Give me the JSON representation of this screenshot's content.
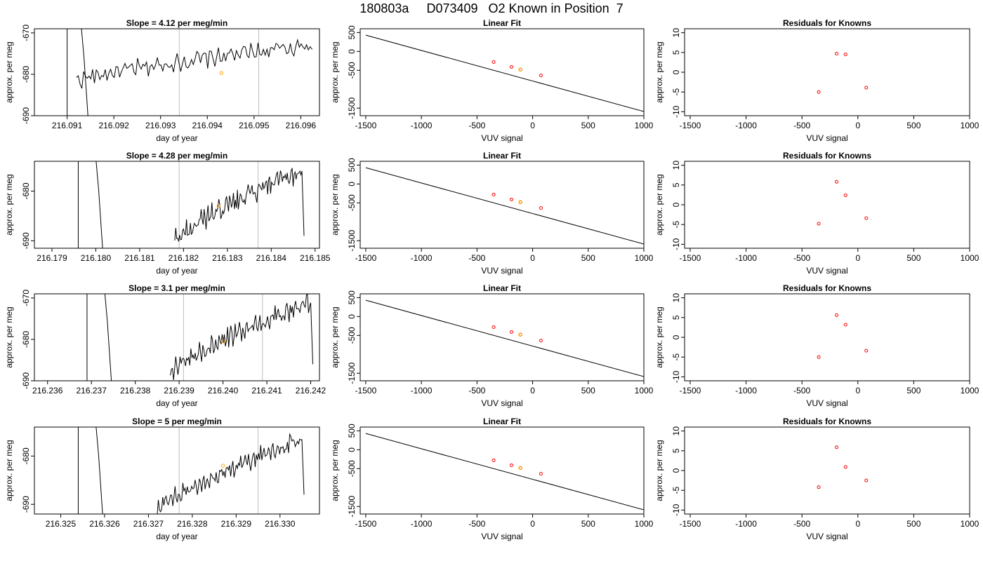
{
  "page_title": "180803a     D073409   O2 Known in Position  7",
  "colors": {
    "line": "#000000",
    "point": "#ff0000",
    "highlight": "#ffa500",
    "vline": "#bebebe"
  },
  "chart_data": [
    {
      "type": "line",
      "title": "Slope =  4.12  per meg/min",
      "xlabel": "day of year",
      "ylabel": "approx. per meg",
      "xlim": [
        216.0903,
        216.0964
      ],
      "ylim": [
        -690,
        -669
      ],
      "xticks": [
        "216.091",
        "216.092",
        "216.093",
        "216.094",
        "216.095",
        "216.096"
      ],
      "yticks": [
        "-690",
        "-680",
        "-670"
      ],
      "vlines": [
        216.0934,
        216.0951
      ],
      "marker": {
        "x": 216.0943,
        "y": -679.7
      },
      "trace": {
        "x_start": 216.0912,
        "x_end": 216.0962,
        "y_start": -681.5,
        "y_end": -673.0,
        "noise": 1.6
      },
      "spikes": [
        216.091,
        216.0913
      ],
      "y_drop_end": -674
    },
    {
      "type": "scatter",
      "title": "Linear Fit",
      "xlabel": "VUV signal",
      "ylabel": "approx. per meg",
      "xlim": [
        -1550,
        1000
      ],
      "ylim": [
        -1700,
        600
      ],
      "xticks": [
        "-1500",
        "-1000",
        "-500",
        "0",
        "500",
        "1000"
      ],
      "yticks": [
        "-1500",
        "-500",
        "0",
        "500"
      ],
      "fit_line": {
        "x": [
          -1500,
          1000
        ],
        "y": [
          430,
          -1590
        ]
      },
      "points": [
        {
          "x": -350,
          "y": -280
        },
        {
          "x": -190,
          "y": -410
        },
        {
          "x": -110,
          "y": -480
        },
        {
          "x": 75,
          "y": -635
        }
      ],
      "highlight": {
        "x": -110,
        "y": -480
      }
    },
    {
      "type": "scatter",
      "title": "Residuals for Knowns",
      "xlabel": "VUV signal",
      "ylabel": "approx. per meg",
      "xlim": [
        -1550,
        1000
      ],
      "ylim": [
        -11,
        11
      ],
      "xticks": [
        "-1500",
        "-1000",
        "-500",
        "0",
        "500",
        "1000"
      ],
      "yticks": [
        "-10",
        "-5",
        "0",
        "5",
        "10"
      ],
      "points": [
        {
          "x": -350,
          "y": -5.0
        },
        {
          "x": -190,
          "y": 4.7
        },
        {
          "x": -110,
          "y": 4.5
        },
        {
          "x": 75,
          "y": -3.9
        }
      ]
    },
    {
      "type": "line",
      "title": "Slope =  4.28  per meg/min",
      "xlabel": "day of year",
      "ylabel": "approx. per meg",
      "xlim": [
        216.1786,
        216.1851
      ],
      "ylim": [
        -691.5,
        -674
      ],
      "xticks": [
        "216.179",
        "216.180",
        "216.181",
        "216.182",
        "216.183",
        "216.184",
        "216.185"
      ],
      "yticks": [
        "-690",
        "-680"
      ],
      "vlines": [
        216.1819,
        216.1837
      ],
      "marker": {
        "x": 216.1828,
        "y": -683.0
      },
      "trace": {
        "x_start": 216.1818,
        "x_end": 216.1847,
        "y_start": -690.0,
        "y_end": -676.0,
        "noise": 1.6
      },
      "spikes": [
        216.1796,
        216.18
      ],
      "y_drop_end": -689
    },
    {
      "type": "scatter",
      "title": "Linear Fit",
      "xlabel": "VUV signal",
      "ylabel": "approx. per meg",
      "xlim": [
        -1550,
        1000
      ],
      "ylim": [
        -1700,
        600
      ],
      "xticks": [
        "-1500",
        "-1000",
        "-500",
        "0",
        "500",
        "1000"
      ],
      "yticks": [
        "-1500",
        "-500",
        "0",
        "500"
      ],
      "fit_line": {
        "x": [
          -1500,
          1000
        ],
        "y": [
          430,
          -1590
        ]
      },
      "points": [
        {
          "x": -350,
          "y": -280
        },
        {
          "x": -190,
          "y": -410
        },
        {
          "x": -110,
          "y": -480
        },
        {
          "x": 75,
          "y": -635
        }
      ],
      "highlight": {
        "x": -110,
        "y": -480
      }
    },
    {
      "type": "scatter",
      "title": "Residuals for Knowns",
      "xlabel": "VUV signal",
      "ylabel": "approx. per meg",
      "xlim": [
        -1550,
        1000
      ],
      "ylim": [
        -11,
        11
      ],
      "xticks": [
        "-1500",
        "-1000",
        "-500",
        "0",
        "500",
        "1000"
      ],
      "yticks": [
        "-10",
        "-5",
        "0",
        "5",
        "10"
      ],
      "points": [
        {
          "x": -350,
          "y": -4.8
        },
        {
          "x": -190,
          "y": 5.8
        },
        {
          "x": -110,
          "y": 2.4
        },
        {
          "x": 75,
          "y": -3.4
        }
      ]
    },
    {
      "type": "line",
      "title": "Slope =  3.1  per meg/min",
      "xlabel": "day of year",
      "ylabel": "approx. per meg",
      "xlim": [
        216.2357,
        216.2422
      ],
      "ylim": [
        -690,
        -669
      ],
      "xticks": [
        "216.236",
        "216.237",
        "216.238",
        "216.239",
        "216.240",
        "216.241",
        "216.242"
      ],
      "yticks": [
        "-690",
        "-680",
        "-670"
      ],
      "vlines": [
        216.2391,
        216.2409
      ],
      "marker": {
        "x": 216.24,
        "y": -680.5
      },
      "trace": {
        "x_start": 216.2388,
        "x_end": 216.242,
        "y_start": -688.0,
        "y_end": -671.0,
        "noise": 1.8
      },
      "spikes": [
        216.2369,
        216.2373
      ],
      "y_drop_end": -686
    },
    {
      "type": "scatter",
      "title": "Linear Fit",
      "xlabel": "VUV signal",
      "ylabel": "approx. per meg",
      "xlim": [
        -1550,
        1000
      ],
      "ylim": [
        -1700,
        600
      ],
      "xticks": [
        "-1500",
        "-1000",
        "-500",
        "0",
        "500",
        "1000"
      ],
      "yticks": [
        "-1500",
        "-500",
        "0",
        "500"
      ],
      "fit_line": {
        "x": [
          -1500,
          1000
        ],
        "y": [
          430,
          -1590
        ]
      },
      "points": [
        {
          "x": -350,
          "y": -280
        },
        {
          "x": -190,
          "y": -410
        },
        {
          "x": -110,
          "y": -480
        },
        {
          "x": 75,
          "y": -635
        }
      ],
      "highlight": {
        "x": -110,
        "y": -480
      }
    },
    {
      "type": "scatter",
      "title": "Residuals for Knowns",
      "xlabel": "VUV signal",
      "ylabel": "approx. per meg",
      "xlim": [
        -1550,
        1000
      ],
      "ylim": [
        -11,
        11
      ],
      "xticks": [
        "-1500",
        "-1000",
        "-500",
        "0",
        "500",
        "1000"
      ],
      "yticks": [
        "-10",
        "-5",
        "0",
        "5",
        "10"
      ],
      "points": [
        {
          "x": -350,
          "y": -5.0
        },
        {
          "x": -190,
          "y": 5.6
        },
        {
          "x": -110,
          "y": 3.2
        },
        {
          "x": 75,
          "y": -3.4
        }
      ]
    },
    {
      "type": "line",
      "title": "Slope =  5  per meg/min",
      "xlabel": "day of year",
      "ylabel": "approx. per meg",
      "xlim": [
        216.3244,
        216.3309
      ],
      "ylim": [
        -692,
        -674
      ],
      "xticks": [
        "216.325",
        "216.326",
        "216.327",
        "216.328",
        "216.329",
        "216.330"
      ],
      "yticks": [
        "-690",
        "-680"
      ],
      "vlines": [
        216.3277,
        216.3295
      ],
      "marker": {
        "x": 216.3287,
        "y": -682.0
      },
      "trace": {
        "x_start": 216.3272,
        "x_end": 216.3305,
        "y_start": -691.0,
        "y_end": -676.5,
        "noise": 1.5
      },
      "spikes": [
        216.3254,
        216.3258
      ],
      "y_drop_end": -688
    },
    {
      "type": "scatter",
      "title": "Linear Fit",
      "xlabel": "VUV signal",
      "ylabel": "approx. per meg",
      "xlim": [
        -1550,
        1000
      ],
      "ylim": [
        -1700,
        600
      ],
      "xticks": [
        "-1500",
        "-1000",
        "-500",
        "0",
        "500",
        "1000"
      ],
      "yticks": [
        "-1500",
        "-500",
        "0",
        "500"
      ],
      "fit_line": {
        "x": [
          -1500,
          1000
        ],
        "y": [
          430,
          -1590
        ]
      },
      "points": [
        {
          "x": -350,
          "y": -280
        },
        {
          "x": -190,
          "y": -410
        },
        {
          "x": -110,
          "y": -480
        },
        {
          "x": 75,
          "y": -635
        }
      ],
      "highlight": {
        "x": -110,
        "y": -480
      }
    },
    {
      "type": "scatter",
      "title": "Residuals for Knowns",
      "xlabel": "VUV signal",
      "ylabel": "approx. per meg",
      "xlim": [
        -1550,
        1000
      ],
      "ylim": [
        -11,
        11
      ],
      "xticks": [
        "-1500",
        "-1000",
        "-500",
        "0",
        "500",
        "1000"
      ],
      "yticks": [
        "-10",
        "-5",
        "0",
        "5",
        "10"
      ],
      "points": [
        {
          "x": -350,
          "y": -4.2
        },
        {
          "x": -190,
          "y": 5.9
        },
        {
          "x": -110,
          "y": 0.9
        },
        {
          "x": 75,
          "y": -2.5
        }
      ]
    }
  ]
}
